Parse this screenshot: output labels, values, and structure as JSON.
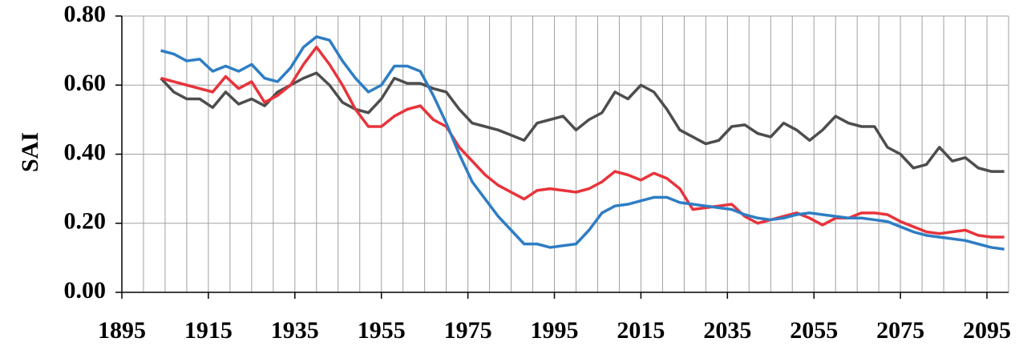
{
  "chart_data": {
    "type": "line",
    "ylabel": "SAI",
    "x": [
      1904,
      1907,
      1910,
      1913,
      1916,
      1919,
      1922,
      1925,
      1928,
      1931,
      1934,
      1937,
      1940,
      1943,
      1946,
      1949,
      1952,
      1955,
      1958,
      1961,
      1964,
      1967,
      1970,
      1973,
      1976,
      1979,
      1982,
      1985,
      1988,
      1991,
      1994,
      1997,
      2000,
      2003,
      2006,
      2009,
      2012,
      2015,
      2018,
      2021,
      2024,
      2027,
      2030,
      2033,
      2036,
      2039,
      2042,
      2045,
      2048,
      2051,
      2054,
      2057,
      2060,
      2063,
      2066,
      2069,
      2072,
      2075,
      2078,
      2081,
      2084,
      2087,
      2090,
      2093,
      2096,
      2099
    ],
    "series": [
      {
        "color": "#4d4d4d",
        "values": [
          0.62,
          0.58,
          0.56,
          0.56,
          0.535,
          0.58,
          0.545,
          0.56,
          0.54,
          0.58,
          0.6,
          0.62,
          0.635,
          0.6,
          0.55,
          0.53,
          0.52,
          0.56,
          0.62,
          0.605,
          0.605,
          0.59,
          0.58,
          0.53,
          0.49,
          0.48,
          0.47,
          0.455,
          0.44,
          0.49,
          0.5,
          0.51,
          0.47,
          0.5,
          0.52,
          0.58,
          0.56,
          0.6,
          0.58,
          0.53,
          0.47,
          0.45,
          0.43,
          0.44,
          0.48,
          0.485,
          0.46,
          0.45,
          0.49,
          0.47,
          0.44,
          0.47,
          0.51,
          0.49,
          0.48,
          0.48,
          0.42,
          0.4,
          0.36,
          0.37,
          0.42,
          0.38,
          0.39,
          0.36,
          0.35,
          0.35
        ]
      },
      {
        "color": "#e8333a",
        "values": [
          0.62,
          0.61,
          0.6,
          0.59,
          0.58,
          0.625,
          0.59,
          0.61,
          0.55,
          0.57,
          0.6,
          0.66,
          0.71,
          0.66,
          0.6,
          0.53,
          0.48,
          0.48,
          0.51,
          0.53,
          0.54,
          0.5,
          0.48,
          0.42,
          0.38,
          0.34,
          0.31,
          0.29,
          0.27,
          0.295,
          0.3,
          0.295,
          0.29,
          0.3,
          0.32,
          0.35,
          0.34,
          0.325,
          0.345,
          0.33,
          0.3,
          0.24,
          0.245,
          0.25,
          0.255,
          0.22,
          0.2,
          0.21,
          0.22,
          0.23,
          0.215,
          0.195,
          0.215,
          0.215,
          0.23,
          0.23,
          0.225,
          0.205,
          0.19,
          0.175,
          0.17,
          0.175,
          0.18,
          0.165,
          0.16,
          0.16
        ]
      },
      {
        "color": "#2e7dc4",
        "values": [
          0.7,
          0.69,
          0.67,
          0.675,
          0.64,
          0.655,
          0.64,
          0.66,
          0.62,
          0.61,
          0.65,
          0.71,
          0.74,
          0.73,
          0.67,
          0.62,
          0.58,
          0.6,
          0.655,
          0.655,
          0.64,
          0.57,
          0.49,
          0.4,
          0.32,
          0.27,
          0.22,
          0.18,
          0.14,
          0.14,
          0.13,
          0.135,
          0.14,
          0.18,
          0.23,
          0.25,
          0.255,
          0.265,
          0.275,
          0.275,
          0.26,
          0.255,
          0.25,
          0.245,
          0.24,
          0.225,
          0.215,
          0.21,
          0.215,
          0.225,
          0.23,
          0.225,
          0.22,
          0.215,
          0.215,
          0.21,
          0.205,
          0.19,
          0.175,
          0.165,
          0.16,
          0.155,
          0.15,
          0.14,
          0.13,
          0.125
        ]
      }
    ],
    "xlim": [
      1895,
      2100
    ],
    "xticks": [
      1895,
      1915,
      1935,
      1955,
      1975,
      1995,
      2015,
      2035,
      2055,
      2075,
      2095
    ],
    "xminorticks": [
      1895,
      1900,
      1905,
      1910,
      1915,
      1920,
      1925,
      1930,
      1935,
      1940,
      1945,
      1950,
      1955,
      1960,
      1965,
      1970,
      1975,
      1980,
      1985,
      1990,
      1995,
      2000,
      2005,
      2010,
      2015,
      2020,
      2025,
      2030,
      2035,
      2040,
      2045,
      2050,
      2055,
      2060,
      2065,
      2070,
      2075,
      2080,
      2085,
      2090,
      2095,
      2100
    ],
    "ylim": [
      0,
      0.8
    ],
    "yticks": [
      {
        "value": 0,
        "label": "0.00"
      },
      {
        "value": 0.2,
        "label": "0.20"
      },
      {
        "value": 0.4,
        "label": "0.40"
      },
      {
        "value": 0.6,
        "label": "0.60"
      },
      {
        "value": 0.8,
        "label": "0.80"
      }
    ],
    "grid": true
  }
}
